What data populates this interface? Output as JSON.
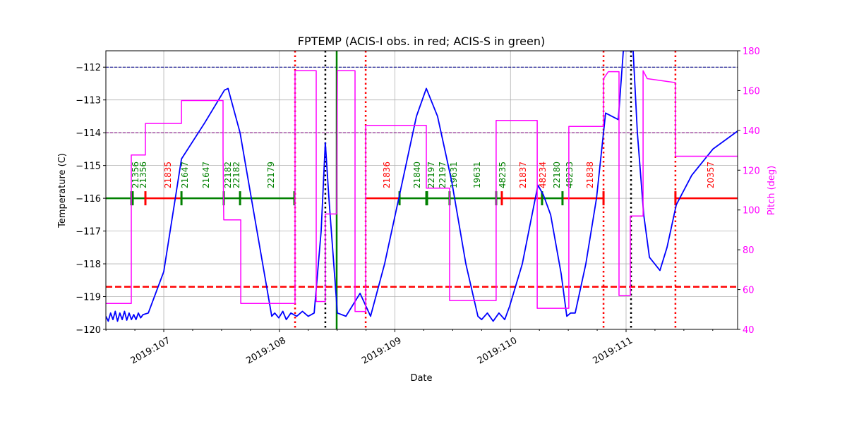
{
  "chart_data": {
    "type": "line",
    "title": "FPTEMP (ACIS-I obs. in red; ACIS-S in green)",
    "xlabel": "Date",
    "ylabel": "Temperature (C)",
    "y2label": "Pitch (deg)",
    "xlim": [
      106.499,
      111.965
    ],
    "ylim": [
      -120,
      -111.5
    ],
    "y2lim": [
      40,
      180
    ],
    "grid": true,
    "x_ticks": [
      {
        "value": 107,
        "label": "2019:107"
      },
      {
        "value": 108,
        "label": "2019:108"
      },
      {
        "value": 109,
        "label": "2019:109"
      },
      {
        "value": 110,
        "label": "2019:110"
      },
      {
        "value": 111,
        "label": "2019:111"
      }
    ],
    "y_ticks": [
      -112,
      -113,
      -114,
      -115,
      -116,
      -117,
      -118,
      -119,
      -120
    ],
    "y2_ticks": [
      40,
      60,
      80,
      100,
      120,
      140,
      160,
      180
    ],
    "colors": {
      "temperature": "#0000ff",
      "pitch": "#ff00ff",
      "acis_i": "#ff0000",
      "acis_s": "#008000",
      "limit_high": "#00008b",
      "limit_mid": "#800080",
      "limit_low": "#ff0000"
    },
    "series": [
      {
        "name": "FPTEMP",
        "axis": "left",
        "points": [
          [
            106.499,
            -119.6
          ],
          [
            106.52,
            -119.75
          ],
          [
            106.54,
            -119.5
          ],
          [
            106.56,
            -119.7
          ],
          [
            106.58,
            -119.45
          ],
          [
            106.6,
            -119.75
          ],
          [
            106.62,
            -119.5
          ],
          [
            106.64,
            -119.7
          ],
          [
            106.66,
            -119.45
          ],
          [
            106.68,
            -119.72
          ],
          [
            106.7,
            -119.5
          ],
          [
            106.72,
            -119.7
          ],
          [
            106.74,
            -119.55
          ],
          [
            106.76,
            -119.7
          ],
          [
            106.78,
            -119.5
          ],
          [
            106.8,
            -119.65
          ],
          [
            106.82,
            -119.55
          ],
          [
            106.866,
            -119.5
          ],
          [
            107.0,
            -118.24
          ],
          [
            107.153,
            -114.8
          ],
          [
            107.354,
            -113.7
          ],
          [
            107.525,
            -112.7
          ],
          [
            107.556,
            -112.65
          ],
          [
            107.66,
            -114.0
          ],
          [
            107.782,
            -116.5
          ],
          [
            107.934,
            -119.6
          ],
          [
            107.96,
            -119.5
          ],
          [
            107.995,
            -119.65
          ],
          [
            108.03,
            -119.45
          ],
          [
            108.06,
            -119.7
          ],
          [
            108.1,
            -119.5
          ],
          [
            108.15,
            -119.6
          ],
          [
            108.2,
            -119.45
          ],
          [
            108.25,
            -119.6
          ],
          [
            108.301,
            -119.5
          ],
          [
            108.362,
            -117.0
          ],
          [
            108.398,
            -114.3
          ],
          [
            108.429,
            -116.0
          ],
          [
            108.502,
            -119.5
          ],
          [
            108.576,
            -119.6
          ],
          [
            108.698,
            -118.9
          ],
          [
            108.789,
            -119.6
          ],
          [
            108.911,
            -118.0
          ],
          [
            109.064,
            -115.5
          ],
          [
            109.186,
            -113.5
          ],
          [
            109.272,
            -112.65
          ],
          [
            109.369,
            -113.5
          ],
          [
            109.492,
            -115.5
          ],
          [
            109.614,
            -118.0
          ],
          [
            109.718,
            -119.6
          ],
          [
            109.75,
            -119.7
          ],
          [
            109.8,
            -119.5
          ],
          [
            109.85,
            -119.75
          ],
          [
            109.9,
            -119.5
          ],
          [
            109.95,
            -119.7
          ],
          [
            109.992,
            -119.3
          ],
          [
            110.102,
            -118.0
          ],
          [
            110.237,
            -115.6
          ],
          [
            110.285,
            -115.9
          ],
          [
            110.347,
            -116.5
          ],
          [
            110.438,
            -118.3
          ],
          [
            110.487,
            -119.6
          ],
          [
            110.52,
            -119.5
          ],
          [
            110.56,
            -119.5
          ],
          [
            110.652,
            -118.0
          ],
          [
            110.744,
            -116.0
          ],
          [
            110.823,
            -113.4
          ],
          [
            110.933,
            -113.6
          ],
          [
            110.976,
            -111.5
          ],
          [
            111.061,
            -111.5
          ],
          [
            111.098,
            -114.0
          ],
          [
            111.153,
            -116.5
          ],
          [
            111.202,
            -117.8
          ],
          [
            111.293,
            -118.2
          ],
          [
            111.354,
            -117.5
          ],
          [
            111.434,
            -116.2
          ],
          [
            111.568,
            -115.3
          ],
          [
            111.751,
            -114.5
          ],
          [
            111.965,
            -113.95
          ]
        ]
      },
      {
        "name": "Pitch",
        "axis": "right",
        "points": [
          [
            106.499,
            53
          ],
          [
            106.719,
            53
          ],
          [
            106.719,
            127.6
          ],
          [
            106.841,
            127.6
          ],
          [
            106.841,
            143.5
          ],
          [
            107.153,
            143.5
          ],
          [
            107.153,
            155
          ],
          [
            107.513,
            155
          ],
          [
            107.513,
            127.6
          ],
          [
            107.519,
            95
          ],
          [
            107.666,
            95
          ],
          [
            107.666,
            53
          ],
          [
            108.136,
            53
          ],
          [
            108.136,
            170
          ],
          [
            108.319,
            170
          ],
          [
            108.319,
            54
          ],
          [
            108.398,
            54
          ],
          [
            108.398,
            98
          ],
          [
            108.496,
            98
          ],
          [
            108.502,
            170
          ],
          [
            108.655,
            170
          ],
          [
            108.655,
            49
          ],
          [
            108.747,
            49
          ],
          [
            108.747,
            142.5
          ],
          [
            109.272,
            142.5
          ],
          [
            109.272,
            111
          ],
          [
            109.473,
            111
          ],
          [
            109.473,
            54.5
          ],
          [
            109.876,
            54.5
          ],
          [
            109.876,
            145
          ],
          [
            110.231,
            145
          ],
          [
            110.231,
            50.6
          ],
          [
            110.505,
            50.6
          ],
          [
            110.505,
            142
          ],
          [
            110.805,
            142
          ],
          [
            110.805,
            166
          ],
          [
            110.847,
            169.5
          ],
          [
            110.939,
            169.5
          ],
          [
            110.939,
            57
          ],
          [
            111.037,
            57
          ],
          [
            111.037,
            97
          ],
          [
            111.147,
            97
          ],
          [
            111.147,
            170
          ],
          [
            111.183,
            166
          ],
          [
            111.427,
            164
          ],
          [
            111.427,
            127
          ],
          [
            111.965,
            127
          ]
        ]
      }
    ],
    "hlines": [
      {
        "name": "limit-high",
        "y": -112.0,
        "color": "#00008b",
        "style": "dashed"
      },
      {
        "name": "limit-mid",
        "y": -114.0,
        "color": "#800080",
        "style": "dashed"
      },
      {
        "name": "limit-low",
        "y": -118.7,
        "color": "#ff0000",
        "style": "thick-dashed"
      }
    ],
    "vlines": [
      {
        "x": 108.136,
        "color": "#ff0000",
        "style": "dotted"
      },
      {
        "x": 108.747,
        "color": "#ff0000",
        "style": "dotted"
      },
      {
        "x": 110.805,
        "color": "#ff0000",
        "style": "dotted"
      },
      {
        "x": 111.427,
        "color": "#ff0000",
        "style": "dotted"
      },
      {
        "x": 108.398,
        "color": "#000000",
        "style": "dotted"
      },
      {
        "x": 111.043,
        "color": "#000000",
        "style": "dotted"
      },
      {
        "x": 108.496,
        "color": "#008000",
        "style": "solid"
      }
    ],
    "obs_level": -116,
    "obs_segments": [
      {
        "start": 106.499,
        "end": 106.841,
        "instrument": "ACIS-S"
      },
      {
        "start": 106.841,
        "end": 107.153,
        "instrument": "ACIS-I"
      },
      {
        "start": 107.153,
        "end": 108.13,
        "instrument": "ACIS-S"
      },
      {
        "start": 108.747,
        "end": 109.04,
        "instrument": "ACIS-I"
      },
      {
        "start": 109.04,
        "end": 109.925,
        "instrument": "ACIS-S"
      },
      {
        "start": 109.925,
        "end": 110.273,
        "instrument": "ACIS-I"
      },
      {
        "start": 110.273,
        "end": 110.45,
        "instrument": "ACIS-S"
      },
      {
        "start": 110.45,
        "end": 110.805,
        "instrument": "ACIS-I"
      },
      {
        "start": 111.427,
        "end": 111.965,
        "instrument": "ACIS-I"
      }
    ],
    "obs_ticks": [
      {
        "x": 106.719,
        "instrument": "ACIS-S"
      },
      {
        "x": 106.731,
        "instrument": "ACIS-S"
      },
      {
        "x": 106.841,
        "instrument": "ACIS-I"
      },
      {
        "x": 107.153,
        "instrument": "ACIS-S"
      },
      {
        "x": 107.519,
        "instrument": "ACIS-S"
      },
      {
        "x": 107.66,
        "instrument": "ACIS-S"
      },
      {
        "x": 108.13,
        "instrument": "ACIS-S"
      },
      {
        "x": 109.04,
        "instrument": "ACIS-S"
      },
      {
        "x": 109.272,
        "instrument": "ACIS-S"
      },
      {
        "x": 109.278,
        "instrument": "ACIS-S"
      },
      {
        "x": 109.473,
        "instrument": "ACIS-S"
      },
      {
        "x": 109.876,
        "instrument": "ACIS-S"
      },
      {
        "x": 109.925,
        "instrument": "ACIS-I"
      },
      {
        "x": 110.273,
        "instrument": "ACIS-S"
      },
      {
        "x": 110.45,
        "instrument": "ACIS-S"
      },
      {
        "x": 110.805,
        "instrument": "ACIS-I"
      },
      {
        "x": 111.427,
        "instrument": "ACIS-I"
      }
    ],
    "obs_labels": [
      {
        "x": 106.756,
        "label": "21356",
        "instrument": "ACIS-S"
      },
      {
        "x": 106.823,
        "label": "21356",
        "instrument": "ACIS-S"
      },
      {
        "x": 107.037,
        "label": "21835",
        "instrument": "ACIS-I"
      },
      {
        "x": 107.183,
        "label": "21647",
        "instrument": "ACIS-S"
      },
      {
        "x": 107.366,
        "label": "21647",
        "instrument": "ACIS-S"
      },
      {
        "x": 107.556,
        "label": "22182",
        "instrument": "ACIS-S"
      },
      {
        "x": 107.629,
        "label": "22182",
        "instrument": "ACIS-S"
      },
      {
        "x": 107.928,
        "label": "22179",
        "instrument": "ACIS-S"
      },
      {
        "x": 108.93,
        "label": "21836",
        "instrument": "ACIS-I"
      },
      {
        "x": 109.192,
        "label": "21840",
        "instrument": "ACIS-S"
      },
      {
        "x": 109.315,
        "label": "22197",
        "instrument": "ACIS-S"
      },
      {
        "x": 109.412,
        "label": "22197",
        "instrument": "ACIS-S"
      },
      {
        "x": 109.51,
        "label": "19631",
        "instrument": "ACIS-S"
      },
      {
        "x": 109.711,
        "label": "19631",
        "instrument": "ACIS-S"
      },
      {
        "x": 109.931,
        "label": "48235",
        "instrument": "ACIS-S"
      },
      {
        "x": 110.108,
        "label": "21837",
        "instrument": "ACIS-I"
      },
      {
        "x": 110.279,
        "label": "48234",
        "instrument": "ACIS-I"
      },
      {
        "x": 110.402,
        "label": "22180",
        "instrument": "ACIS-S"
      },
      {
        "x": 110.511,
        "label": "48233",
        "instrument": "ACIS-S"
      },
      {
        "x": 110.689,
        "label": "21838",
        "instrument": "ACIS-I"
      },
      {
        "x": 111.733,
        "label": "20357",
        "instrument": "ACIS-I"
      }
    ]
  }
}
